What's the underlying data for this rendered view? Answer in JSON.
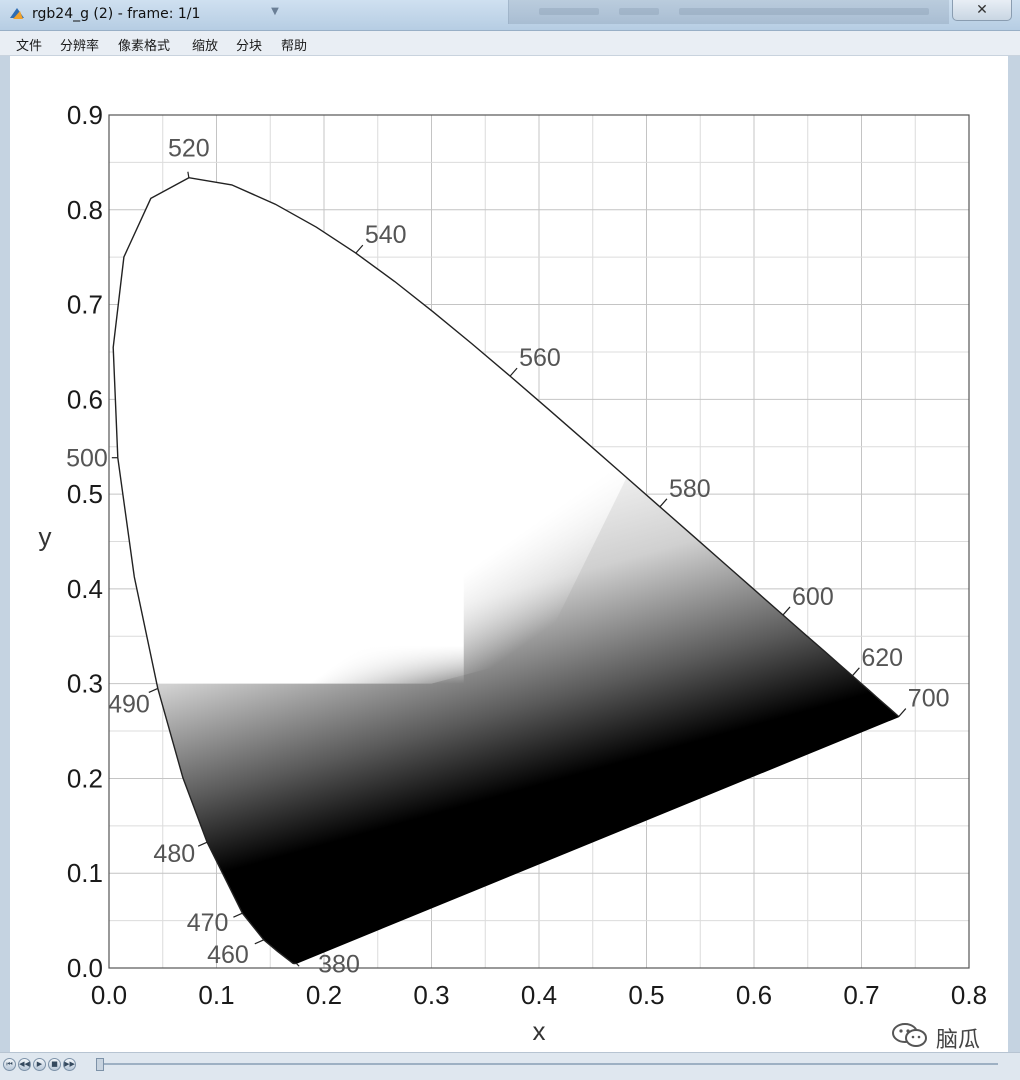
{
  "window": {
    "title": "rgb24_g (2) - frame: 1/1",
    "close_symbol": "✕"
  },
  "menu": {
    "items": [
      "文件",
      "分辨率",
      "像素格式",
      "缩放",
      "分块",
      "帮助"
    ]
  },
  "icons": {
    "app": "app-icon",
    "title_dropdown": "chevron-down-icon",
    "close": "close-icon",
    "watermark": "wechat-icon"
  },
  "controls": [
    "⏮",
    "◀◀",
    "▶",
    "■",
    "▶▶"
  ],
  "watermark": {
    "text": "脑瓜"
  },
  "colors": {
    "axis": "#555555",
    "grid": "#cccccc",
    "curve": "#222222",
    "label": "#555555",
    "fill_dark": "#000000"
  },
  "chart_data": {
    "type": "scatter",
    "xlabel": "x",
    "ylabel": "y",
    "xlim": [
      0,
      0.8
    ],
    "ylim": [
      0,
      0.9
    ],
    "x_ticks": [
      "0.0",
      "0.1",
      "0.2",
      "0.3",
      "0.4",
      "0.5",
      "0.6",
      "0.7",
      "0.8"
    ],
    "y_ticks": [
      "0.0",
      "0.1",
      "0.2",
      "0.3",
      "0.4",
      "0.5",
      "0.6",
      "0.7",
      "0.8",
      "0.9"
    ],
    "grid": true,
    "locus": [
      [
        0.1741,
        0.005
      ],
      [
        0.1738,
        0.0049
      ],
      [
        0.1736,
        0.0049
      ],
      [
        0.173,
        0.0048
      ],
      [
        0.172,
        0.0048
      ],
      [
        0.171,
        0.0051
      ],
      [
        0.1689,
        0.0069
      ],
      [
        0.1644,
        0.0109
      ],
      [
        0.1566,
        0.0177
      ],
      [
        0.144,
        0.0297
      ],
      [
        0.1241,
        0.0578
      ],
      [
        0.0913,
        0.1327
      ],
      [
        0.0687,
        0.2007
      ],
      [
        0.0454,
        0.295
      ],
      [
        0.0235,
        0.4127
      ],
      [
        0.0082,
        0.5384
      ],
      [
        0.0039,
        0.6548
      ],
      [
        0.0139,
        0.7502
      ],
      [
        0.0389,
        0.812
      ],
      [
        0.0743,
        0.8338
      ],
      [
        0.1142,
        0.8262
      ],
      [
        0.1547,
        0.8059
      ],
      [
        0.1929,
        0.7816
      ],
      [
        0.2296,
        0.7543
      ],
      [
        0.2658,
        0.7243
      ],
      [
        0.3016,
        0.6923
      ],
      [
        0.3373,
        0.6589
      ],
      [
        0.3731,
        0.6245
      ],
      [
        0.4087,
        0.5896
      ],
      [
        0.4441,
        0.5547
      ],
      [
        0.4788,
        0.5202
      ],
      [
        0.5125,
        0.4866
      ],
      [
        0.5448,
        0.4544
      ],
      [
        0.5752,
        0.4242
      ],
      [
        0.6029,
        0.3965
      ],
      [
        0.627,
        0.3725
      ],
      [
        0.6482,
        0.3514
      ],
      [
        0.6658,
        0.334
      ],
      [
        0.6801,
        0.3197
      ],
      [
        0.6915,
        0.3083
      ],
      [
        0.7006,
        0.2993
      ],
      [
        0.7079,
        0.292
      ],
      [
        0.714,
        0.2859
      ],
      [
        0.719,
        0.2809
      ],
      [
        0.723,
        0.277
      ],
      [
        0.726,
        0.274
      ],
      [
        0.7347,
        0.2653
      ]
    ],
    "wavelength_labels": [
      {
        "label": "380",
        "x": 0.1741,
        "y": 0.005,
        "pos": "below-right"
      },
      {
        "label": "460",
        "x": 0.144,
        "y": 0.0297,
        "pos": "left"
      },
      {
        "label": "470",
        "x": 0.1241,
        "y": 0.0578,
        "pos": "left"
      },
      {
        "label": "480",
        "x": 0.0913,
        "y": 0.1327,
        "pos": "left"
      },
      {
        "label": "490",
        "x": 0.0454,
        "y": 0.295,
        "pos": "left"
      },
      {
        "label": "500",
        "x": 0.0082,
        "y": 0.5384,
        "pos": "left"
      },
      {
        "label": "520",
        "x": 0.0743,
        "y": 0.8338,
        "pos": "above"
      },
      {
        "label": "540",
        "x": 0.2296,
        "y": 0.7543,
        "pos": "right"
      },
      {
        "label": "560",
        "x": 0.3731,
        "y": 0.6245,
        "pos": "right"
      },
      {
        "label": "580",
        "x": 0.5125,
        "y": 0.4866,
        "pos": "right"
      },
      {
        "label": "600",
        "x": 0.627,
        "y": 0.3725,
        "pos": "right"
      },
      {
        "label": "620",
        "x": 0.6915,
        "y": 0.3083,
        "pos": "right"
      },
      {
        "label": "700",
        "x": 0.7347,
        "y": 0.2653,
        "pos": "right"
      }
    ]
  }
}
